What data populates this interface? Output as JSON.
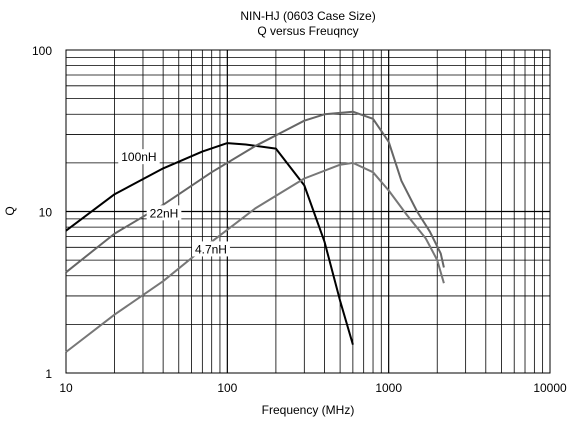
{
  "chart_data": {
    "type": "line",
    "title": "NIN-HJ (0603 Case Size)",
    "subtitle": "Q versus Freuqncy",
    "xlabel": "Frequency (MHz)",
    "ylabel": "Q",
    "x_scale": "log",
    "y_scale": "log",
    "xlim": [
      10,
      10000
    ],
    "ylim": [
      1,
      100
    ],
    "grid": true,
    "legend": "none",
    "x_ticks": [
      "10",
      "100",
      "1000",
      "10000"
    ],
    "y_ticks": [
      "1",
      "10",
      "100"
    ],
    "series": [
      {
        "name": "100nH",
        "color": "#000000",
        "x": [
          10,
          20,
          40,
          70,
          100,
          130,
          200,
          300,
          400,
          500,
          600
        ],
        "y": [
          7.6,
          12.8,
          18.5,
          23.5,
          26.5,
          26,
          24.5,
          14.5,
          6.5,
          2.8,
          1.5
        ]
      },
      {
        "name": "22nH",
        "color": "#666666",
        "x": [
          10,
          20,
          40,
          80,
          150,
          300,
          400,
          600,
          800,
          1000,
          1200,
          1500,
          1800,
          2100,
          2200
        ],
        "y": [
          4.2,
          7.3,
          11,
          17.5,
          25.5,
          36.5,
          40,
          41.5,
          37.5,
          27,
          15.5,
          10,
          7.5,
          5.5,
          4.5
        ]
      },
      {
        "name": "4.7nH",
        "color": "#777777",
        "x": [
          10,
          20,
          40,
          80,
          150,
          300,
          500,
          600,
          800,
          1000,
          1300,
          1700,
          2000,
          2200
        ],
        "y": [
          1.35,
          2.3,
          3.7,
          6.5,
          10.5,
          16,
          19.5,
          20,
          17.5,
          13.5,
          9.5,
          6.8,
          5,
          3.6
        ]
      }
    ],
    "annotations": [
      {
        "text": "100nH",
        "x": 22,
        "y": 20.5
      },
      {
        "text": "22nH",
        "x": 33,
        "y": 9.2
      },
      {
        "text": "4.7nH",
        "x": 63,
        "y": 5.5
      }
    ]
  }
}
